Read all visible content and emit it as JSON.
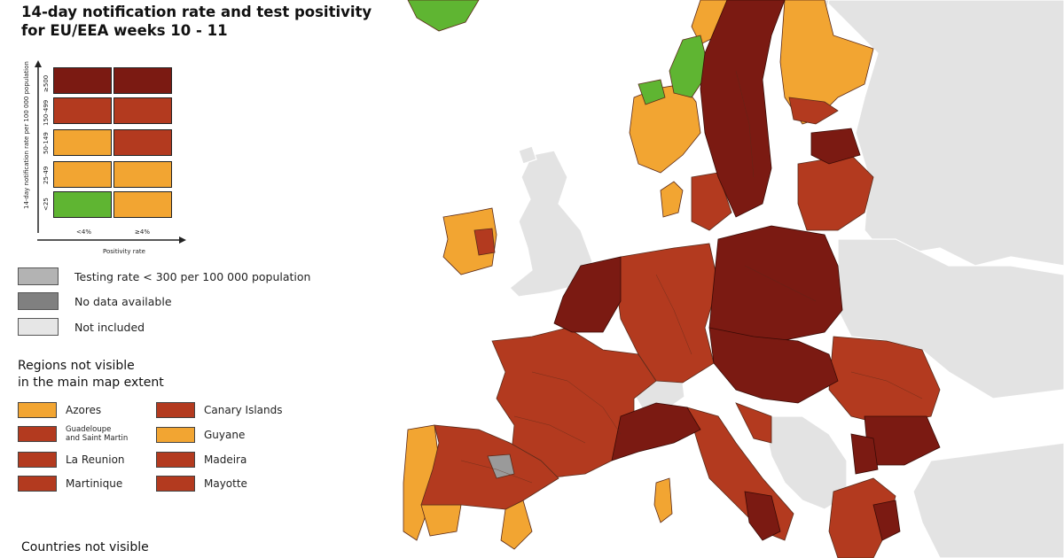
{
  "title": {
    "line1": "14-day notification rate and test positivity",
    "line2": "for EU/EEA weeks 10 - 11"
  },
  "matrix": {
    "y_axis_label": "14-day notification rate per 100 000 population",
    "y_ticks": [
      "≥500",
      "150-499",
      "50-149",
      "25-49",
      "<25"
    ],
    "x_ticks": [
      "<4%",
      "≥4%"
    ],
    "x_axis_label": "Positivity rate",
    "cells": [
      [
        "#7b1a12",
        "#7b1a12"
      ],
      [
        "#b33a1f",
        "#b33a1f"
      ],
      [
        "#f2a532",
        "#b33a1f"
      ],
      [
        "#f2a532",
        "#f2a532"
      ],
      [
        "#5fb532",
        "#f2a532"
      ]
    ]
  },
  "legend": [
    {
      "label": "Testing rate < 300 per 100 000 population",
      "color": "#b3b3b3"
    },
    {
      "label": "No data available",
      "color": "#808080"
    },
    {
      "label": "Not included",
      "color": "#e6e6e6"
    }
  ],
  "regions_heading_line1": "Regions not visible",
  "regions_heading_line2": "in the main map extent",
  "regions": [
    {
      "label": "Azores",
      "color": "#f2a532"
    },
    {
      "label": "Canary Islands",
      "color": "#b33a1f"
    },
    {
      "label1": "Guadeloupe",
      "label2": "and Saint Martin",
      "color": "#b33a1f"
    },
    {
      "label": "Guyane",
      "color": "#f2a532"
    },
    {
      "label": "La Reunion",
      "color": "#b33a1f"
    },
    {
      "label": "Madeira",
      "color": "#b33a1f"
    },
    {
      "label": "Martinique",
      "color": "#b33a1f"
    },
    {
      "label": "Mayotte",
      "color": "#b33a1f"
    }
  ],
  "countries_heading": "Countries not visible",
  "colors": {
    "sea": "#ffffff",
    "not_included": "#e3e3e3",
    "dark_red": "#7b1a12",
    "red": "#b33a1f",
    "orange": "#f2a532",
    "green": "#5fb532",
    "grey": "#9a9a9a",
    "border": "#5a2a1a"
  }
}
